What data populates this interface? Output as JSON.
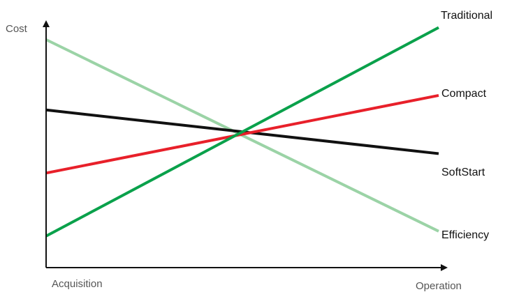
{
  "chart_data": {
    "type": "line",
    "title": "",
    "xlabel": "",
    "ylabel": "Cost",
    "x_axis_start_label": "Acquisition",
    "x_axis_end_label": "Operation",
    "x": [
      0,
      1
    ],
    "xlim": [
      0,
      1
    ],
    "ylim": [
      0,
      10
    ],
    "grid": false,
    "legend": "inline-right",
    "series": [
      {
        "name": "Traditional",
        "values": [
          1.3,
          9.9
        ],
        "color": "#0aa14b"
      },
      {
        "name": "Compact",
        "values": [
          3.9,
          7.1
        ],
        "color": "#e8202a"
      },
      {
        "name": "SoftStart",
        "values": [
          6.5,
          4.7
        ],
        "color": "#111111"
      },
      {
        "name": "Efficiency",
        "values": [
          9.4,
          1.5
        ],
        "color": "#9bd3a6"
      }
    ]
  }
}
